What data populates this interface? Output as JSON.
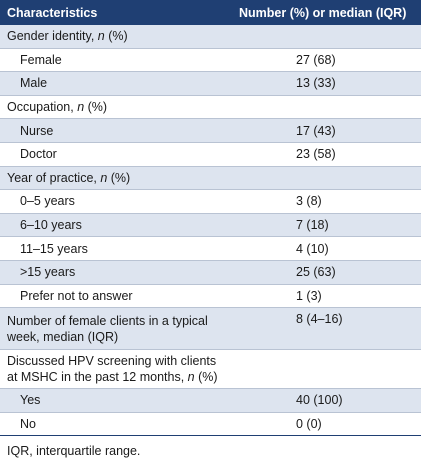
{
  "table": {
    "headers": [
      "Characteristics",
      "Number (%) or median (IQR)"
    ],
    "rows": [
      {
        "label_pre": "Gender identity, ",
        "label_it": "n",
        "label_post": " (%)",
        "value": ""
      },
      {
        "label_pre": "Female",
        "label_it": "",
        "label_post": "",
        "value": "27 (68)"
      },
      {
        "label_pre": "Male",
        "label_it": "",
        "label_post": "",
        "value": "13 (33)"
      },
      {
        "label_pre": "Occupation, ",
        "label_it": "n",
        "label_post": " (%)",
        "value": ""
      },
      {
        "label_pre": "Nurse",
        "label_it": "",
        "label_post": "",
        "value": "17 (43)"
      },
      {
        "label_pre": "Doctor",
        "label_it": "",
        "label_post": "",
        "value": "23 (58)"
      },
      {
        "label_pre": "Year of practice, ",
        "label_it": "n",
        "label_post": " (%)",
        "value": ""
      },
      {
        "label_pre": "0–5 years",
        "label_it": "",
        "label_post": "",
        "value": "3 (8)"
      },
      {
        "label_pre": "6–10 years",
        "label_it": "",
        "label_post": "",
        "value": "7 (18)"
      },
      {
        "label_pre": "11–15 years",
        "label_it": "",
        "label_post": "",
        "value": "4 (10)"
      },
      {
        "label_pre": ">15 years",
        "label_it": "",
        "label_post": "",
        "value": "25 (63)"
      },
      {
        "label_pre": "Prefer not to answer",
        "label_it": "",
        "label_post": "",
        "value": "1 (3)"
      },
      {
        "label_pre": "Number of female clients in a typical week, median (IQR)",
        "label_it": "",
        "label_post": "",
        "value": "8 (4–16)"
      },
      {
        "label_pre": "Discussed HPV screening with clients at MSHC in the past 12 months, ",
        "label_it": "n",
        "label_post": " (%)",
        "value": ""
      },
      {
        "label_pre": "Yes",
        "label_it": "",
        "label_post": "",
        "value": "40 (100)"
      },
      {
        "label_pre": "No",
        "label_it": "",
        "label_post": "",
        "value": "0 (0)"
      }
    ]
  },
  "footnote": "IQR, interquartile range."
}
